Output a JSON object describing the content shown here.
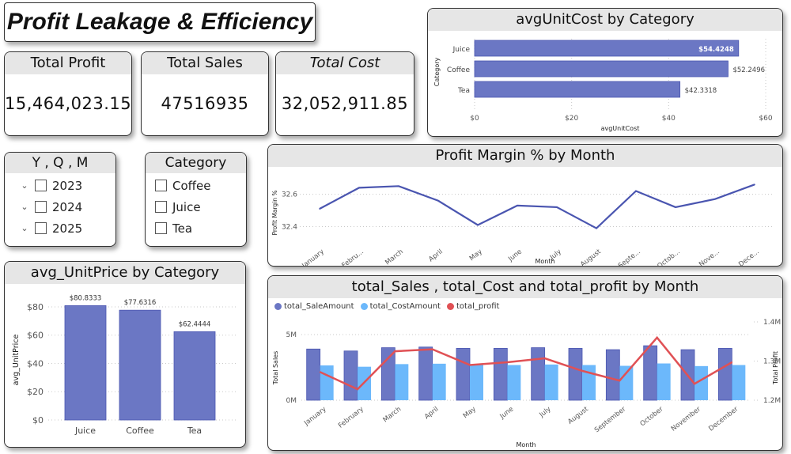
{
  "page_title": "Profit Leakage & Efficiency",
  "kpis": {
    "profit": {
      "label": "Total Profit",
      "value": "15,464,023.15"
    },
    "sales": {
      "label": "Total Sales",
      "value": "47516935"
    },
    "cost": {
      "label": "Total Cost",
      "value": "32,052,911.85"
    }
  },
  "slicers": {
    "yqm": {
      "title": "Y , Q , M",
      "items": [
        {
          "label": "2023",
          "checked": false
        },
        {
          "label": "2024",
          "checked": false
        },
        {
          "label": "2025",
          "checked": false
        }
      ]
    },
    "category": {
      "title": "Category",
      "items": [
        {
          "label": "Coffee",
          "checked": false
        },
        {
          "label": "Juice",
          "checked": false
        },
        {
          "label": "Tea",
          "checked": false
        }
      ]
    }
  },
  "colors": {
    "bar_primary": "#6b77c4",
    "bar_border": "#4a55b0",
    "cost": "#6cb8fb",
    "profit_line": "#e05155",
    "margin_line": "#4a55b0",
    "grid": "#c8c8c8"
  },
  "chart_data": [
    {
      "id": "unitcost",
      "type": "bar",
      "orientation": "horizontal",
      "title": "avgUnitCost by Category",
      "categories": [
        "Juice",
        "Coffee",
        "Tea"
      ],
      "values": [
        54.4248,
        52.2496,
        42.3318
      ],
      "data_labels": [
        "$54.4248",
        "$52.2496",
        "$42.3318"
      ],
      "xlabel": "avgUnitCost",
      "ylabel": "Category",
      "xlim": [
        0,
        60
      ],
      "xticks": [
        0,
        20,
        40,
        60
      ],
      "xtick_labels": [
        "$0",
        "$20",
        "$40",
        "$60"
      ],
      "grid": true
    },
    {
      "id": "margin",
      "type": "line",
      "title": "Profit Margin % by Month",
      "categories": [
        "January",
        "Febru...",
        "March",
        "April",
        "May",
        "June",
        "July",
        "August",
        "Septe...",
        "Octob...",
        "Nove...",
        "Dece..."
      ],
      "values": [
        32.51,
        32.64,
        32.65,
        32.56,
        32.41,
        32.53,
        32.52,
        32.39,
        32.62,
        32.52,
        32.57,
        32.66
      ],
      "xlabel": "Month",
      "ylabel": "Profit Margin %",
      "ylim": [
        32.3,
        32.72
      ],
      "yticks": [
        32.4,
        32.6
      ],
      "ytick_labels": [
        "32.4",
        "32.6"
      ],
      "grid": true
    },
    {
      "id": "unitprice",
      "type": "bar",
      "title": "avg_UnitPrice by Category",
      "categories": [
        "Juice",
        "Coffee",
        "Tea"
      ],
      "values": [
        80.8333,
        77.6316,
        62.4444
      ],
      "data_labels": [
        "$80.8333",
        "$77.6316",
        "$62.4444"
      ],
      "xlabel": "",
      "ylabel": "avg_UnitPrice",
      "ylim": [
        0,
        85
      ],
      "yticks": [
        0,
        20,
        40,
        60,
        80
      ],
      "ytick_labels": [
        "$0",
        "$20",
        "$40",
        "$60",
        "$80"
      ],
      "grid": true
    },
    {
      "id": "combo",
      "type": "bar",
      "title": "total_Sales , total_Cost and total_profit by Month",
      "categories": [
        "January",
        "February",
        "March",
        "April",
        "May",
        "June",
        "July",
        "August",
        "September",
        "October",
        "November",
        "December"
      ],
      "series": [
        {
          "name": "total_SaleAmount",
          "type": "bar",
          "axis": "left",
          "values": [
            3.9,
            3.75,
            4.0,
            4.05,
            3.95,
            3.95,
            4.0,
            3.95,
            3.85,
            4.15,
            3.85,
            3.95
          ]
        },
        {
          "name": "total_CostAmount",
          "type": "bar",
          "axis": "left",
          "values": [
            2.65,
            2.55,
            2.75,
            2.78,
            2.68,
            2.68,
            2.72,
            2.68,
            2.62,
            2.8,
            2.6,
            2.68
          ]
        },
        {
          "name": "total_profit",
          "type": "line",
          "axis": "right",
          "values": [
            1.272,
            1.228,
            1.325,
            1.33,
            1.29,
            1.297,
            1.307,
            1.275,
            1.25,
            1.36,
            1.242,
            1.297
          ]
        }
      ],
      "units": "millions",
      "xlabel": "Month",
      "ylabel": "Total Sales",
      "ylabel_right": "Total Profit",
      "ylim": [
        0,
        5
      ],
      "yticks": [
        0,
        5
      ],
      "ytick_labels": [
        "0M",
        "5M"
      ],
      "ylim_right": [
        1.2,
        1.4
      ],
      "yticks_right": [
        1.2,
        1.3,
        1.4
      ],
      "ytick_labels_right": [
        "1.2M",
        "1.3M",
        "1.4M"
      ],
      "legend": "top-left",
      "grid": true
    }
  ]
}
